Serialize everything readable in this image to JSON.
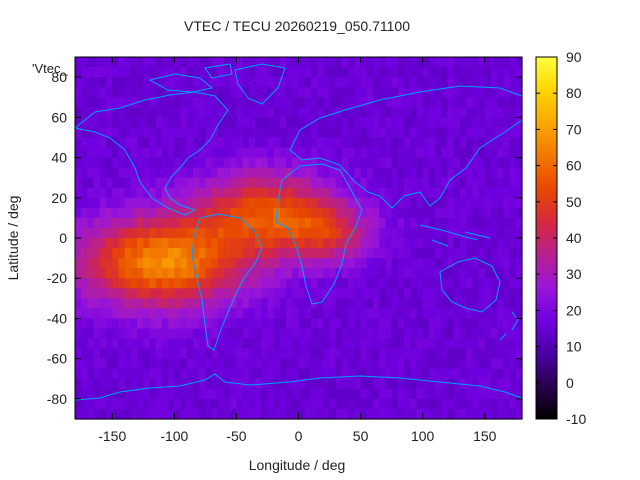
{
  "chart_data": {
    "type": "heatmap",
    "title": "VTEC / TECU 20260219_050.71100",
    "xlabel": "Longitude / deg",
    "ylabel": "Latitude / deg",
    "key_label": "'Vtec_",
    "xlim": [
      -180,
      180
    ],
    "ylim": [
      -90,
      90
    ],
    "x_ticks": [
      -150,
      -100,
      -50,
      0,
      50,
      100,
      150
    ],
    "y_ticks": [
      -80,
      -60,
      -40,
      -20,
      0,
      20,
      40,
      60,
      80
    ],
    "colorbar": {
      "range": [
        -10,
        90
      ],
      "ticks": [
        -10,
        0,
        10,
        20,
        30,
        40,
        50,
        60,
        70,
        80,
        90
      ],
      "palette": [
        "#000000",
        "#2a0050",
        "#4b00a5",
        "#7000e0",
        "#9a16d8",
        "#b8208f",
        "#d6293d",
        "#e84800",
        "#f27800",
        "#faa800",
        "#ffd500",
        "#ffff40"
      ]
    },
    "grid": false,
    "model": {
      "background_tecu": 16,
      "peaks": [
        {
          "lon": -110,
          "lat": -12,
          "amplitude_tecu": 50,
          "lon_spread": 65,
          "lat_spread": 22
        },
        {
          "lon": -25,
          "lat": 12,
          "amplitude_tecu": 38,
          "lon_spread": 55,
          "lat_spread": 20
        },
        {
          "lon": 25,
          "lat": 2,
          "amplitude_tecu": 22,
          "lon_spread": 35,
          "lat_spread": 14
        }
      ]
    },
    "coastline_color": "#00a0ff"
  }
}
